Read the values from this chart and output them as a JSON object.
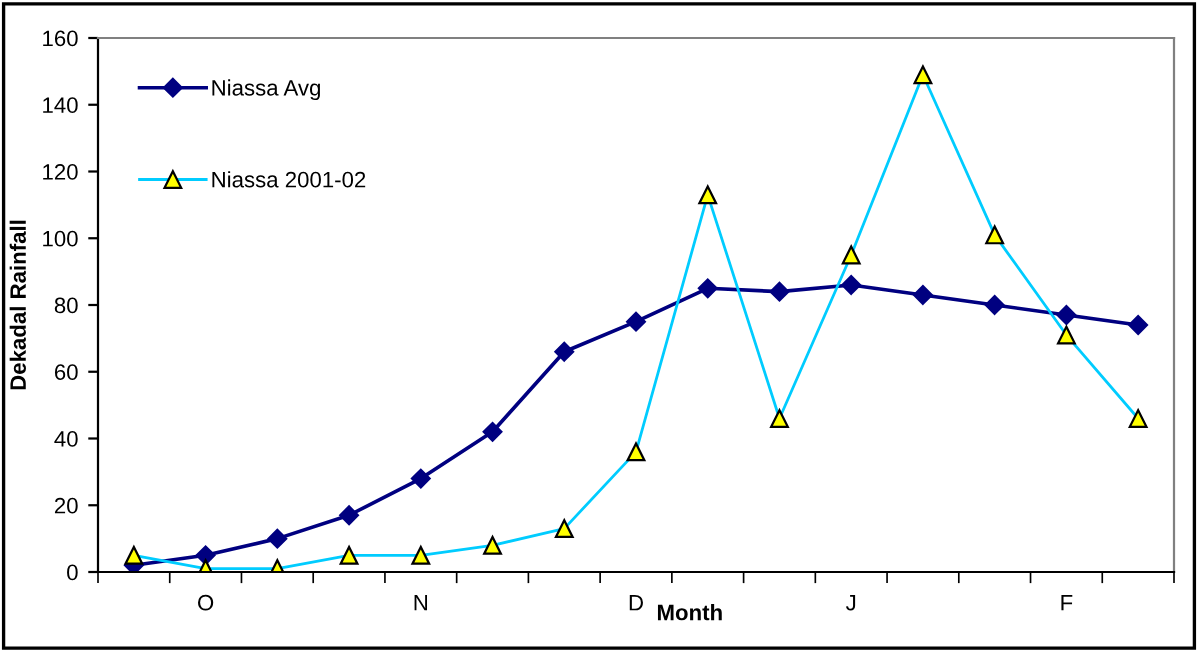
{
  "chart_data": {
    "type": "line",
    "xlabel": "Month",
    "ylabel": "Dekadal Rainfall",
    "categories": [
      null,
      "O",
      null,
      null,
      "N",
      null,
      null,
      "D",
      null,
      null,
      "J",
      null,
      null,
      "F",
      null
    ],
    "series": [
      {
        "name": "Niassa Avg",
        "color": "#000080",
        "marker": "diamond",
        "values": [
          2,
          5,
          10,
          17,
          28,
          42,
          66,
          75,
          85,
          84,
          86,
          83,
          80,
          77,
          74
        ]
      },
      {
        "name": "Niassa 2001-02",
        "color": "#00ccff",
        "marker": "triangle",
        "values": [
          5,
          1,
          1,
          5,
          5,
          8,
          13,
          36,
          113,
          46,
          95,
          149,
          101,
          71,
          46
        ]
      }
    ],
    "ylim": [
      0,
      160
    ],
    "yticks": [
      0,
      20,
      40,
      60,
      80,
      100,
      120,
      140,
      160
    ],
    "grid": false,
    "legend": "top left",
    "line_style": "solid"
  }
}
